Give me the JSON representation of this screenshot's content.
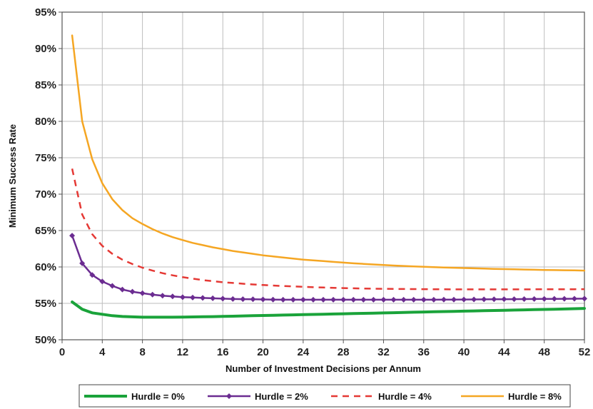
{
  "chart_data": {
    "type": "line",
    "title": "",
    "xlabel": "Number of Investment Decisions per Annum",
    "ylabel": "Minimum Success Rate",
    "xlim": [
      0,
      52
    ],
    "ylim": [
      50,
      95
    ],
    "x_ticks": [
      "0",
      "4",
      "8",
      "12",
      "16",
      "20",
      "24",
      "28",
      "32",
      "36",
      "40",
      "44",
      "48",
      "52"
    ],
    "y_ticks": [
      "50%",
      "55%",
      "60%",
      "65%",
      "70%",
      "75%",
      "80%",
      "85%",
      "90%",
      "95%"
    ],
    "grid": true,
    "legend_position": "bottom",
    "x": [
      1,
      2,
      3,
      4,
      5,
      6,
      7,
      8,
      9,
      10,
      11,
      12,
      13,
      14,
      15,
      16,
      17,
      18,
      19,
      20,
      21,
      22,
      23,
      24,
      25,
      26,
      27,
      28,
      29,
      30,
      31,
      32,
      33,
      34,
      35,
      36,
      37,
      38,
      39,
      40,
      41,
      42,
      43,
      44,
      45,
      46,
      47,
      48,
      49,
      50,
      51,
      52
    ],
    "series": [
      {
        "name": "Hurdle = 0%",
        "color": "#1aa33a",
        "style": "solid-thick",
        "values": [
          55.2,
          54.2,
          53.7,
          53.5,
          53.3,
          53.2,
          53.15,
          53.1,
          53.1,
          53.1,
          53.1,
          53.12,
          53.14,
          53.16,
          53.18,
          53.21,
          53.24,
          53.27,
          53.3,
          53.33,
          53.36,
          53.39,
          53.42,
          53.45,
          53.48,
          53.51,
          53.54,
          53.57,
          53.6,
          53.63,
          53.66,
          53.69,
          53.72,
          53.75,
          53.78,
          53.81,
          53.84,
          53.87,
          53.9,
          53.93,
          53.96,
          53.99,
          54.02,
          54.05,
          54.08,
          54.11,
          54.14,
          54.17,
          54.2,
          54.23,
          54.26,
          54.3
        ]
      },
      {
        "name": "Hurdle = 2%",
        "color": "#6b2c91",
        "style": "solid-markers",
        "values": [
          64.3,
          60.5,
          58.9,
          58.0,
          57.4,
          56.9,
          56.6,
          56.4,
          56.2,
          56.05,
          55.95,
          55.85,
          55.8,
          55.75,
          55.7,
          55.65,
          55.6,
          55.58,
          55.56,
          55.54,
          55.52,
          55.5,
          55.5,
          55.5,
          55.5,
          55.5,
          55.5,
          55.5,
          55.5,
          55.5,
          55.5,
          55.5,
          55.5,
          55.5,
          55.5,
          55.5,
          55.5,
          55.51,
          55.52,
          55.53,
          55.54,
          55.55,
          55.56,
          55.57,
          55.58,
          55.59,
          55.6,
          55.61,
          55.62,
          55.63,
          55.64,
          55.65
        ]
      },
      {
        "name": "Hurdle = 4%",
        "color": "#e53935",
        "style": "dashed",
        "values": [
          73.5,
          67.2,
          64.5,
          62.9,
          61.8,
          61.0,
          60.4,
          59.9,
          59.5,
          59.15,
          58.85,
          58.6,
          58.4,
          58.2,
          58.05,
          57.9,
          57.8,
          57.7,
          57.6,
          57.52,
          57.45,
          57.38,
          57.32,
          57.27,
          57.22,
          57.18,
          57.14,
          57.1,
          57.07,
          57.04,
          57.02,
          57.0,
          56.98,
          56.97,
          56.96,
          56.95,
          56.94,
          56.93,
          56.92,
          56.92,
          56.92,
          56.92,
          56.92,
          56.92,
          56.92,
          56.92,
          56.93,
          56.93,
          56.93,
          56.94,
          56.94,
          56.95
        ]
      },
      {
        "name": "Hurdle = 8%",
        "color": "#f5a623",
        "style": "solid",
        "values": [
          91.8,
          80.0,
          74.8,
          71.5,
          69.3,
          67.8,
          66.7,
          65.9,
          65.2,
          64.6,
          64.1,
          63.7,
          63.3,
          63.0,
          62.7,
          62.45,
          62.2,
          62.0,
          61.8,
          61.6,
          61.45,
          61.3,
          61.15,
          61.0,
          60.9,
          60.8,
          60.7,
          60.6,
          60.5,
          60.42,
          60.34,
          60.26,
          60.2,
          60.14,
          60.08,
          60.02,
          59.98,
          59.93,
          59.89,
          59.85,
          59.81,
          59.77,
          59.74,
          59.71,
          59.68,
          59.65,
          59.62,
          59.59,
          59.57,
          59.55,
          59.53,
          59.5
        ]
      }
    ]
  }
}
